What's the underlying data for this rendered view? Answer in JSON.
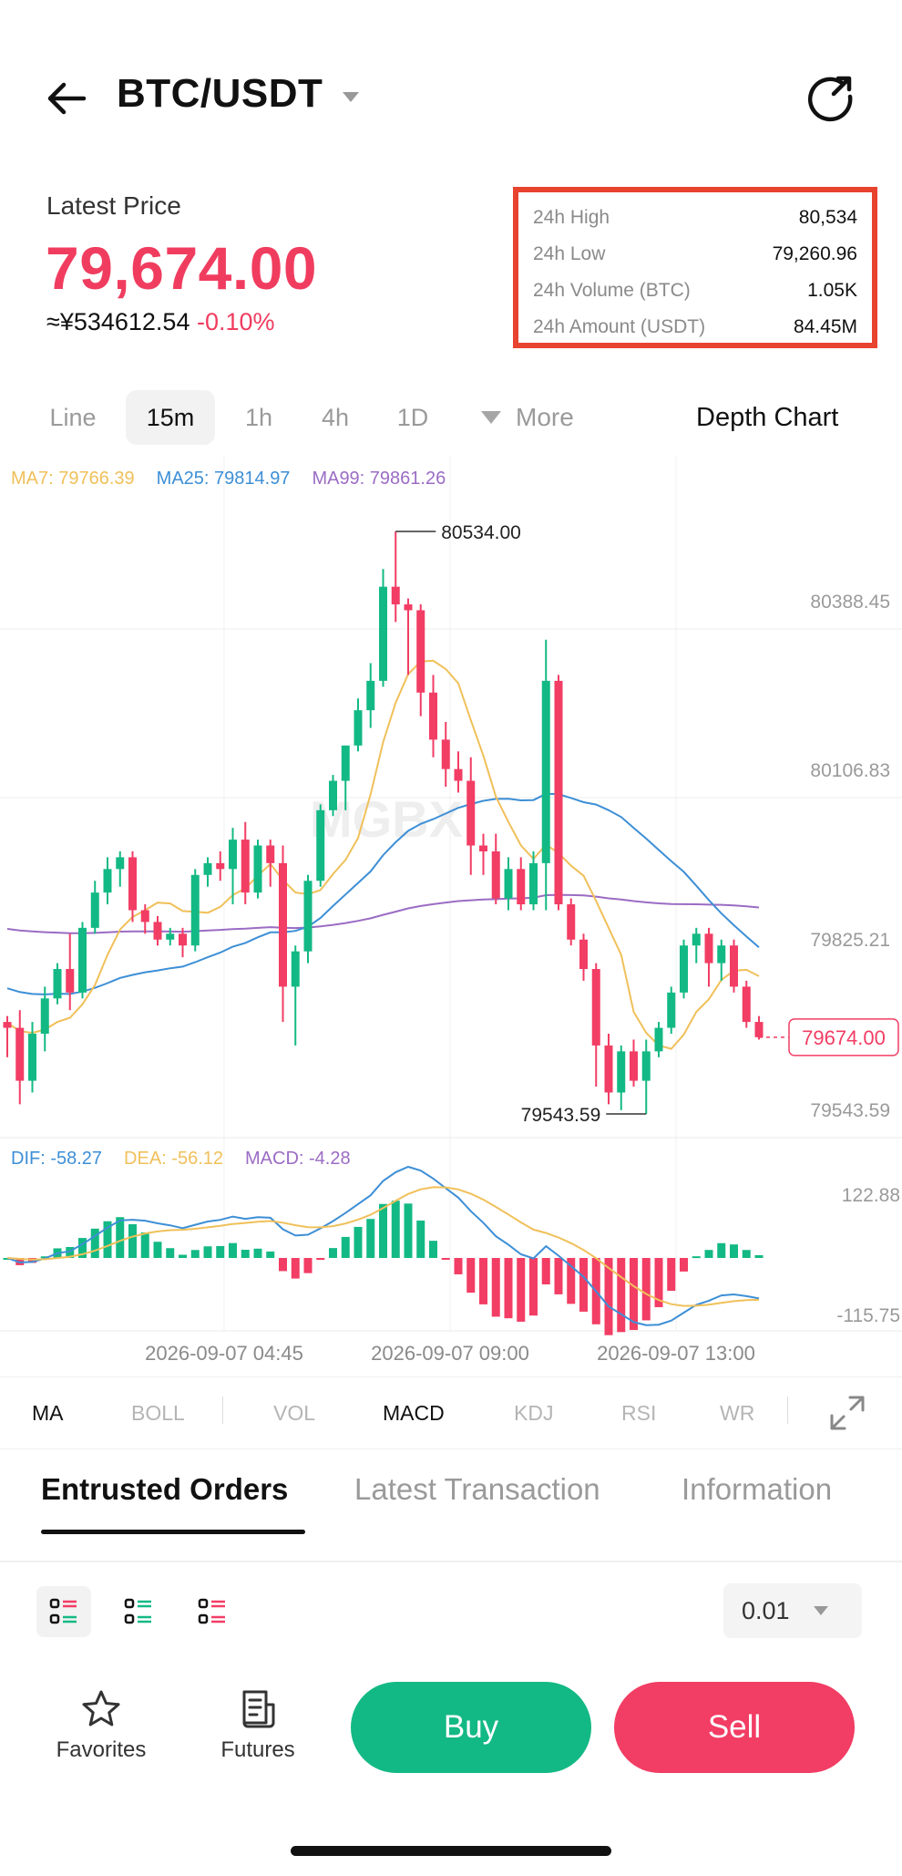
{
  "header": {
    "pair": "BTC/USDT"
  },
  "price": {
    "label": "Latest Price",
    "value": "79,674.00",
    "cny": "≈¥534612.54",
    "change": "-0.10%"
  },
  "stats": [
    {
      "key": "24h High",
      "value": "80,534"
    },
    {
      "key": "24h Low",
      "value": "79,260.96"
    },
    {
      "key": "24h Volume (BTC)",
      "value": "1.05K"
    },
    {
      "key": "24h Amount (USDT)",
      "value": "84.45M"
    }
  ],
  "timeframes": {
    "items": [
      "Line",
      "15m",
      "1h",
      "4h",
      "1D"
    ],
    "active": "15m",
    "more_label": "More",
    "depth_label": "Depth Chart"
  },
  "ma_legend": {
    "ma7": "MA7: 79766.39",
    "ma25": "MA25: 79814.97",
    "ma99": "MA99: 79861.26"
  },
  "macd_legend": {
    "dif": "DIF: -58.27",
    "dea": "DEA: -56.12",
    "macd": "MACD: -4.28"
  },
  "colors": {
    "up": "#13b984",
    "down": "#f23d64",
    "ma7": "#f0c05a",
    "ma25": "#3d8fd6",
    "ma99": "#9b6cc4",
    "stats_border": "#e8432f"
  },
  "chart_data": {
    "type": "candlestick",
    "y_axis_labels": [
      "80388.45",
      "80106.83",
      "79825.21",
      "79543.59"
    ],
    "ylim": [
      79543.59,
      80534.0
    ],
    "high_label": "80534.00",
    "low_label": "79543.59",
    "last_price_label": "79674.00",
    "x_axis_labels": [
      "2026-09-07 04:45",
      "2026-09-07 09:00",
      "2026-09-07 13:00"
    ],
    "macd_axis_labels": [
      "122.88",
      "-115.75"
    ],
    "candles": [
      [
        79700,
        79710,
        79640,
        79690
      ],
      [
        79690,
        79720,
        79560,
        79600
      ],
      [
        79600,
        79700,
        79580,
        79680
      ],
      [
        79680,
        79760,
        79650,
        79740
      ],
      [
        79740,
        79800,
        79730,
        79790
      ],
      [
        79790,
        79850,
        79720,
        79750
      ],
      [
        79750,
        79870,
        79740,
        79860
      ],
      [
        79860,
        79940,
        79850,
        79920
      ],
      [
        79920,
        79980,
        79900,
        79960
      ],
      [
        79960,
        79990,
        79930,
        79980
      ],
      [
        79980,
        79990,
        79870,
        79890
      ],
      [
        79890,
        79900,
        79850,
        79870
      ],
      [
        79870,
        79880,
        79830,
        79840
      ],
      [
        79840,
        79860,
        79830,
        79850
      ],
      [
        79850,
        79860,
        79810,
        79830
      ],
      [
        79830,
        79960,
        79820,
        79950
      ],
      [
        79950,
        79980,
        79930,
        79970
      ],
      [
        79970,
        79990,
        79940,
        79960
      ],
      [
        79960,
        80030,
        79900,
        80010
      ],
      [
        80010,
        80040,
        79900,
        79920
      ],
      [
        79920,
        80010,
        79910,
        80000
      ],
      [
        80000,
        80010,
        79930,
        79970
      ],
      [
        79970,
        80000,
        79700,
        79760
      ],
      [
        79760,
        79830,
        79660,
        79820
      ],
      [
        79820,
        79950,
        79800,
        79940
      ],
      [
        79940,
        80070,
        79930,
        80060
      ],
      [
        80060,
        80120,
        80050,
        80110
      ],
      [
        80110,
        80170,
        80060,
        80170
      ],
      [
        80170,
        80250,
        80160,
        80230
      ],
      [
        80230,
        80310,
        80200,
        80280
      ],
      [
        80280,
        80470,
        80270,
        80440
      ],
      [
        80440,
        80534,
        80380,
        80410
      ],
      [
        80410,
        80420,
        80290,
        80400
      ],
      [
        80400,
        80410,
        80220,
        80260
      ],
      [
        80260,
        80290,
        80150,
        80180
      ],
      [
        80180,
        80210,
        80100,
        80130
      ],
      [
        80130,
        80160,
        80090,
        80110
      ],
      [
        80110,
        80150,
        79950,
        80000
      ],
      [
        80000,
        80020,
        79950,
        79990
      ],
      [
        79990,
        80020,
        79900,
        79910
      ],
      [
        79910,
        79980,
        79890,
        79960
      ],
      [
        79960,
        79980,
        79890,
        79900
      ],
      [
        79900,
        79990,
        79890,
        79970
      ],
      [
        79970,
        80350,
        79890,
        80280
      ],
      [
        80280,
        80290,
        79890,
        79900
      ],
      [
        79900,
        79910,
        79830,
        79840
      ],
      [
        79840,
        79850,
        79770,
        79790
      ],
      [
        79790,
        79800,
        79590,
        79660
      ],
      [
        79660,
        79680,
        79560,
        79580
      ],
      [
        79580,
        79660,
        79550,
        79650
      ],
      [
        79650,
        79670,
        79590,
        79600
      ],
      [
        79600,
        79670,
        79543.59,
        79650
      ],
      [
        79650,
        79700,
        79640,
        79690
      ],
      [
        79690,
        79760,
        79680,
        79750
      ],
      [
        79750,
        79840,
        79740,
        79830
      ],
      [
        79830,
        79860,
        79800,
        79850
      ],
      [
        79850,
        79860,
        79760,
        79800
      ],
      [
        79800,
        79840,
        79770,
        79830
      ],
      [
        79830,
        79840,
        79750,
        79760
      ],
      [
        79760,
        79770,
        79690,
        79700
      ],
      [
        79700,
        79710,
        79670,
        79674
      ]
    ]
  },
  "indicators": {
    "items": [
      "MA",
      "BOLL",
      "VOL",
      "MACD",
      "KDJ",
      "RSI",
      "WR"
    ],
    "active": [
      "MA",
      "MACD"
    ]
  },
  "orders": {
    "tabs": [
      "Entrusted Orders",
      "Latest Transaction",
      "Information"
    ],
    "active": "Entrusted Orders",
    "precision": "0.01"
  },
  "bottom": {
    "favorites": "Favorites",
    "futures": "Futures",
    "buy": "Buy",
    "sell": "Sell"
  }
}
